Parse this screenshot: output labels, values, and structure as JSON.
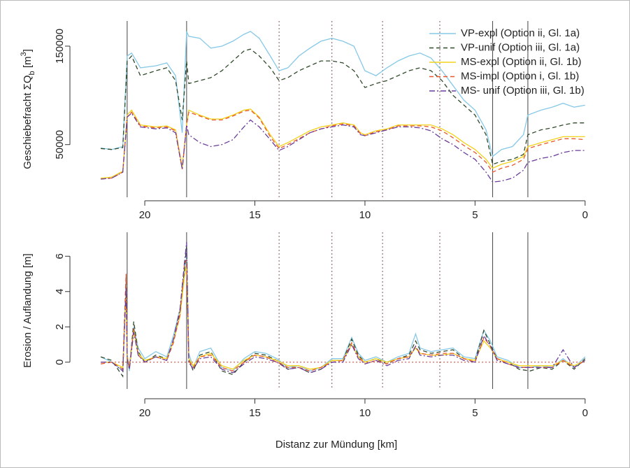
{
  "chart_data": [
    {
      "type": "line",
      "ylabel": [
        "Geschiebefracht ΣQ",
        "b",
        " [m",
        "3",
        "]"
      ],
      "x": [
        22,
        21.5,
        21.0,
        20.8,
        20.6,
        20.2,
        19.5,
        19.0,
        18.6,
        18.3,
        18.1,
        18.0,
        17.5,
        17.0,
        16.5,
        16.0,
        15.5,
        15.2,
        14.8,
        14.3,
        13.9,
        13.5,
        13.0,
        12.5,
        12.0,
        11.5,
        11.0,
        10.5,
        10.2,
        10.0,
        9.5,
        9.0,
        8.5,
        8.0,
        7.5,
        7.0,
        6.5,
        6.0,
        5.5,
        5.0,
        4.5,
        4.2,
        3.8,
        3.3,
        2.8,
        2.6,
        2.0,
        1.5,
        1.0,
        0.5,
        0.0
      ],
      "series": [
        {
          "name": "VP-expl (Option ii, Gl. 1a)",
          "color": "#86c8e8",
          "dash": "solid",
          "values": [
            46500,
            45000,
            48000,
            140000,
            143000,
            128000,
            130000,
            133000,
            120000,
            62000,
            165000,
            160000,
            158000,
            148000,
            150000,
            155000,
            162000,
            165000,
            158000,
            140000,
            125000,
            128000,
            140000,
            148000,
            155000,
            158000,
            155000,
            150000,
            135000,
            125000,
            120000,
            128000,
            135000,
            140000,
            143000,
            138000,
            125000,
            110000,
            95000,
            85000,
            65000,
            38000,
            45000,
            48000,
            60000,
            80000,
            85000,
            88000,
            92000,
            88000,
            90000
          ]
        },
        {
          "name": "VP-unif (Option iii, Gl. 1a)",
          "color": "#2f4a2a",
          "dash": "dashed",
          "values": [
            46000,
            45000,
            47000,
            135000,
            140000,
            120000,
            125000,
            128000,
            115000,
            75000,
            135000,
            112000,
            115000,
            118000,
            125000,
            135000,
            145000,
            147000,
            140000,
            128000,
            115000,
            118000,
            125000,
            130000,
            135000,
            135000,
            133000,
            125000,
            115000,
            108000,
            112000,
            115000,
            120000,
            125000,
            128000,
            125000,
            115000,
            100000,
            90000,
            80000,
            60000,
            30000,
            33000,
            35000,
            40000,
            60000,
            65000,
            67000,
            70000,
            72000,
            72000
          ]
        },
        {
          "name": "MS-expl (Option ii, Gl. 1b)",
          "color": "#f2d21b",
          "dash": "solid",
          "values": [
            16000,
            17000,
            23000,
            80000,
            85000,
            70000,
            68000,
            69000,
            65000,
            27000,
            70000,
            85000,
            80000,
            76000,
            76000,
            80000,
            85000,
            86000,
            78000,
            60000,
            48000,
            52000,
            58000,
            64000,
            68000,
            70000,
            72000,
            70000,
            62000,
            60000,
            64000,
            66000,
            70000,
            70000,
            70000,
            70000,
            66000,
            60000,
            52000,
            45000,
            35000,
            26000,
            30000,
            33000,
            38000,
            48000,
            52000,
            55000,
            58000,
            58000,
            58000
          ]
        },
        {
          "name": "MS-impl (Option i, Gl. 1b)",
          "color": "#e8572a",
          "dash": "dashed",
          "values": [
            15000,
            16000,
            22000,
            78000,
            83000,
            69000,
            67000,
            68000,
            64000,
            25000,
            70000,
            83000,
            79000,
            75000,
            75000,
            79000,
            84000,
            85000,
            77000,
            58000,
            46000,
            50000,
            56000,
            62000,
            66000,
            69000,
            71000,
            69000,
            61000,
            59000,
            63000,
            65000,
            69000,
            69000,
            69000,
            68000,
            64000,
            57000,
            49000,
            42000,
            32000,
            22000,
            26000,
            29000,
            35000,
            46000,
            50000,
            53000,
            56000,
            56000,
            55000
          ]
        },
        {
          "name": "MS- unif (Option iii, Gl. 1b)",
          "color": "#6a3d9a",
          "dash": "dashdot",
          "values": [
            15000,
            16000,
            22000,
            78000,
            82000,
            68000,
            66000,
            67000,
            62000,
            25000,
            70000,
            60000,
            52000,
            48000,
            50000,
            55000,
            68000,
            75000,
            68000,
            55000,
            44000,
            48000,
            55000,
            62000,
            66000,
            68000,
            70000,
            68000,
            60000,
            59000,
            62000,
            65000,
            68000,
            68000,
            67000,
            64000,
            56000,
            50000,
            42000,
            35000,
            22000,
            12000,
            13000,
            16000,
            24000,
            32000,
            36000,
            38000,
            42000,
            44000,
            44000
          ]
        }
      ],
      "xlim": [
        23.4,
        -0.8
      ],
      "xticks": [
        20,
        15,
        10,
        5,
        0
      ],
      "ylim": [
        10000,
        172000
      ],
      "yticks": [
        50000,
        150000
      ],
      "vlines": [
        {
          "x": 20.8,
          "style": "solid"
        },
        {
          "x": 18.1,
          "style": "solid"
        },
        {
          "x": 13.9,
          "style": "dotted"
        },
        {
          "x": 11.5,
          "style": "dotted"
        },
        {
          "x": 9.2,
          "style": "dotted"
        },
        {
          "x": 6.6,
          "style": "dotted"
        },
        {
          "x": 4.2,
          "style": "solid"
        },
        {
          "x": 2.6,
          "style": "solid"
        }
      ],
      "legend": "top-right"
    },
    {
      "type": "line",
      "ylabel": [
        "Erosion / Auflandung [m]"
      ],
      "xlabel": "Distanz zur Mündung [km]",
      "x": [
        22,
        21.5,
        21.0,
        20.85,
        20.8,
        20.7,
        20.5,
        20.3,
        20.0,
        19.5,
        19.0,
        18.7,
        18.4,
        18.2,
        18.1,
        18.0,
        17.8,
        17.5,
        17.0,
        16.5,
        16.0,
        15.5,
        15.0,
        14.5,
        14.0,
        13.5,
        13.0,
        12.5,
        12.0,
        11.5,
        11.0,
        10.6,
        10.3,
        10.0,
        9.5,
        9.0,
        8.5,
        8.0,
        7.7,
        7.5,
        7.0,
        6.5,
        6.0,
        5.5,
        5.0,
        4.6,
        4.3,
        4.0,
        3.5,
        3.0,
        2.5,
        2.0,
        1.5,
        1.0,
        0.5,
        0
      ],
      "series": [
        {
          "color": "#86c8e8",
          "dash": "solid",
          "values": [
            0.3,
            0,
            -0.5,
            4.5,
            0.5,
            -0.5,
            2.0,
            0.8,
            0.2,
            0.6,
            0.3,
            1.5,
            3.0,
            5.0,
            6.0,
            0.5,
            -0.3,
            0.6,
            0.8,
            -0.3,
            -0.5,
            0.2,
            0.6,
            0.5,
            0.2,
            -0.3,
            -0.2,
            -0.5,
            -0.3,
            0.2,
            0.2,
            1.4,
            0.5,
            0.1,
            0.3,
            0.0,
            0.3,
            0.5,
            1.6,
            0.8,
            0.6,
            0.7,
            0.8,
            0.3,
            0.2,
            1.8,
            1.2,
            0.3,
            0.1,
            -0.3,
            -0.3,
            -0.2,
            -0.3,
            0.2,
            -0.3,
            0.3
          ]
        },
        {
          "color": "#2f4a2a",
          "dash": "dashed",
          "values": [
            0.3,
            0.1,
            -0.8,
            4.8,
            0.3,
            -0.4,
            2.3,
            0.6,
            0.0,
            0.4,
            0.2,
            1.2,
            2.8,
            5.2,
            6.6,
            0.2,
            -0.5,
            0.4,
            0.6,
            -0.5,
            -0.7,
            0.0,
            0.5,
            0.4,
            0.1,
            -0.4,
            -0.3,
            -0.6,
            -0.4,
            0.1,
            0.1,
            1.3,
            0.4,
            0.0,
            0.2,
            -0.1,
            0.2,
            0.4,
            1.2,
            0.7,
            0.5,
            0.6,
            0.7,
            0.2,
            0.1,
            1.8,
            1.0,
            0.2,
            0.0,
            -0.4,
            -0.5,
            -0.3,
            -0.4,
            0.1,
            -0.4,
            0.2
          ]
        },
        {
          "color": "#f2d21b",
          "dash": "solid",
          "values": [
            0.0,
            0.0,
            -0.3,
            4.0,
            0.3,
            -0.3,
            1.8,
            0.5,
            0.1,
            0.3,
            0.2,
            1.2,
            2.6,
            4.8,
            5.6,
            0.2,
            -0.2,
            0.3,
            0.5,
            -0.2,
            -0.4,
            0.1,
            0.4,
            0.3,
            0.1,
            -0.2,
            -0.2,
            -0.4,
            -0.3,
            0.1,
            0.1,
            1.0,
            0.3,
            0.0,
            0.2,
            0.0,
            0.2,
            0.3,
            0.8,
            0.5,
            0.4,
            0.4,
            0.5,
            0.2,
            0.1,
            1.2,
            0.8,
            0.2,
            0.0,
            -0.2,
            -0.2,
            -0.2,
            -0.2,
            0.1,
            -0.2,
            0.1
          ]
        },
        {
          "color": "#e8572a",
          "dash": "dashed",
          "values": [
            -0.1,
            0.0,
            -0.4,
            5.0,
            0.2,
            -0.3,
            1.9,
            0.4,
            0.0,
            0.3,
            0.1,
            1.1,
            2.7,
            5.5,
            5.8,
            0.1,
            -0.3,
            0.3,
            0.4,
            -0.3,
            -0.5,
            0.0,
            0.4,
            0.3,
            0.0,
            -0.3,
            -0.3,
            -0.5,
            -0.3,
            0.0,
            0.1,
            1.1,
            0.3,
            -0.1,
            0.1,
            -0.1,
            0.2,
            0.3,
            0.9,
            0.5,
            0.4,
            0.5,
            0.5,
            0.2,
            0.0,
            1.4,
            0.9,
            0.2,
            -0.1,
            -0.3,
            -0.3,
            -0.3,
            -0.3,
            0.1,
            -0.3,
            0.1
          ]
        },
        {
          "color": "#6a3d9a",
          "dash": "dashdot",
          "values": [
            0.0,
            0.0,
            -0.5,
            4.2,
            0.2,
            -0.4,
            1.7,
            0.4,
            0.0,
            0.3,
            0.1,
            1.3,
            3.0,
            5.6,
            6.8,
            0.0,
            -0.4,
            0.2,
            0.3,
            -0.4,
            -0.6,
            -0.1,
            0.3,
            0.2,
            0.0,
            -0.4,
            -0.3,
            -0.6,
            -0.4,
            0.0,
            0.0,
            1.0,
            0.2,
            -0.1,
            0.1,
            -0.2,
            0.1,
            0.2,
            0.9,
            0.4,
            0.3,
            0.4,
            0.4,
            0.1,
            0.0,
            1.5,
            0.9,
            0.1,
            -0.1,
            -0.3,
            -0.3,
            -0.3,
            -0.3,
            0.7,
            -0.3,
            0.1
          ]
        }
      ],
      "xlim": [
        23.4,
        -0.8
      ],
      "xticks": [
        20,
        15,
        10,
        5,
        0
      ],
      "ylim": [
        -1.2,
        7.2
      ],
      "yticks": [
        0,
        2,
        4,
        6
      ],
      "hline": 0,
      "vlines": [
        {
          "x": 20.8,
          "style": "solid"
        },
        {
          "x": 18.1,
          "style": "solid"
        },
        {
          "x": 13.9,
          "style": "dotted"
        },
        {
          "x": 11.5,
          "style": "dotted"
        },
        {
          "x": 9.2,
          "style": "dotted"
        },
        {
          "x": 6.6,
          "style": "dotted"
        },
        {
          "x": 4.2,
          "style": "solid"
        },
        {
          "x": 2.6,
          "style": "solid"
        }
      ]
    }
  ]
}
